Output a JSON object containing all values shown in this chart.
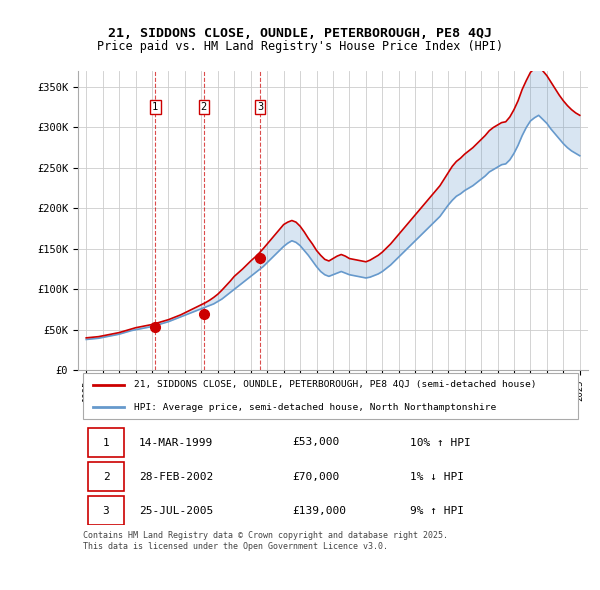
{
  "title_line1": "21, SIDDONS CLOSE, OUNDLE, PETERBOROUGH, PE8 4QJ",
  "title_line2": "Price paid vs. HM Land Registry's House Price Index (HPI)",
  "legend_label_red": "21, SIDDONS CLOSE, OUNDLE, PETERBOROUGH, PE8 4QJ (semi-detached house)",
  "legend_label_blue": "HPI: Average price, semi-detached house, North Northamptonshire",
  "footer": "Contains HM Land Registry data © Crown copyright and database right 2025.\nThis data is licensed under the Open Government Licence v3.0.",
  "transactions": [
    {
      "num": 1,
      "date": "14-MAR-1999",
      "price": "£53,000",
      "hpi": "10% ↑ HPI",
      "year": 1999.2
    },
    {
      "num": 2,
      "date": "28-FEB-2002",
      "price": "£70,000",
      "hpi": "1% ↓ HPI",
      "year": 2002.15
    },
    {
      "num": 3,
      "date": "25-JUL-2005",
      "price": "£139,000",
      "hpi": "9% ↑ HPI",
      "year": 2005.56
    }
  ],
  "transaction_values": [
    53000,
    70000,
    139000
  ],
  "transaction_years": [
    1999.2,
    2002.15,
    2005.56
  ],
  "red_color": "#cc0000",
  "blue_color": "#6699cc",
  "background_color": "#ffffff",
  "grid_color": "#cccccc",
  "ylim": [
    0,
    370000
  ],
  "xlim_start": 1994.5,
  "xlim_end": 2025.5,
  "hpi_years": [
    1995,
    1995.25,
    1995.5,
    1995.75,
    1996,
    1996.25,
    1996.5,
    1996.75,
    1997,
    1997.25,
    1997.5,
    1997.75,
    1998,
    1998.25,
    1998.5,
    1998.75,
    1999,
    1999.25,
    1999.5,
    1999.75,
    2000,
    2000.25,
    2000.5,
    2000.75,
    2001,
    2001.25,
    2001.5,
    2001.75,
    2002,
    2002.25,
    2002.5,
    2002.75,
    2003,
    2003.25,
    2003.5,
    2003.75,
    2004,
    2004.25,
    2004.5,
    2004.75,
    2005,
    2005.25,
    2005.5,
    2005.75,
    2006,
    2006.25,
    2006.5,
    2006.75,
    2007,
    2007.25,
    2007.5,
    2007.75,
    2008,
    2008.25,
    2008.5,
    2008.75,
    2009,
    2009.25,
    2009.5,
    2009.75,
    2010,
    2010.25,
    2010.5,
    2010.75,
    2011,
    2011.25,
    2011.5,
    2011.75,
    2012,
    2012.25,
    2012.5,
    2012.75,
    2013,
    2013.25,
    2013.5,
    2013.75,
    2014,
    2014.25,
    2014.5,
    2014.75,
    2015,
    2015.25,
    2015.5,
    2015.75,
    2016,
    2016.25,
    2016.5,
    2016.75,
    2017,
    2017.25,
    2017.5,
    2017.75,
    2018,
    2018.25,
    2018.5,
    2018.75,
    2019,
    2019.25,
    2019.5,
    2019.75,
    2020,
    2020.25,
    2020.5,
    2020.75,
    2021,
    2021.25,
    2021.5,
    2021.75,
    2022,
    2022.25,
    2022.5,
    2022.75,
    2023,
    2023.25,
    2023.5,
    2023.75,
    2024,
    2024.25,
    2024.5,
    2024.75,
    2025
  ],
  "hpi_values": [
    38000,
    38500,
    39000,
    39500,
    40500,
    41500,
    42500,
    43500,
    44500,
    46000,
    47500,
    49000,
    50000,
    51000,
    52000,
    53000,
    54000,
    55500,
    57000,
    58500,
    60000,
    62000,
    64000,
    66000,
    68000,
    70000,
    72000,
    74000,
    76000,
    78000,
    80000,
    82000,
    85000,
    88000,
    92000,
    96000,
    100000,
    104000,
    108000,
    112000,
    116000,
    120000,
    124000,
    128000,
    133000,
    138000,
    143000,
    148000,
    153000,
    157000,
    160000,
    158000,
    154000,
    148000,
    142000,
    135000,
    128000,
    122000,
    118000,
    116000,
    118000,
    120000,
    122000,
    120000,
    118000,
    117000,
    116000,
    115000,
    114000,
    115000,
    117000,
    119000,
    122000,
    126000,
    130000,
    135000,
    140000,
    145000,
    150000,
    155000,
    160000,
    165000,
    170000,
    175000,
    180000,
    185000,
    190000,
    197000,
    204000,
    210000,
    215000,
    218000,
    222000,
    225000,
    228000,
    232000,
    236000,
    240000,
    245000,
    248000,
    251000,
    254000,
    255000,
    260000,
    268000,
    278000,
    290000,
    300000,
    308000,
    312000,
    315000,
    310000,
    305000,
    298000,
    292000,
    286000,
    280000,
    275000,
    271000,
    268000,
    265000
  ],
  "red_years": [
    1995,
    1995.25,
    1995.5,
    1995.75,
    1996,
    1996.25,
    1996.5,
    1996.75,
    1997,
    1997.25,
    1997.5,
    1997.75,
    1998,
    1998.25,
    1998.5,
    1998.75,
    1999,
    1999.25,
    1999.5,
    1999.75,
    2000,
    2000.25,
    2000.5,
    2000.75,
    2001,
    2001.25,
    2001.5,
    2001.75,
    2002,
    2002.25,
    2002.5,
    2002.75,
    2003,
    2003.25,
    2003.5,
    2003.75,
    2004,
    2004.25,
    2004.5,
    2004.75,
    2005,
    2005.25,
    2005.5,
    2005.75,
    2006,
    2006.25,
    2006.5,
    2006.75,
    2007,
    2007.25,
    2007.5,
    2007.75,
    2008,
    2008.25,
    2008.5,
    2008.75,
    2009,
    2009.25,
    2009.5,
    2009.75,
    2010,
    2010.25,
    2010.5,
    2010.75,
    2011,
    2011.25,
    2011.5,
    2011.75,
    2012,
    2012.25,
    2012.5,
    2012.75,
    2013,
    2013.25,
    2013.5,
    2013.75,
    2014,
    2014.25,
    2014.5,
    2014.75,
    2015,
    2015.25,
    2015.5,
    2015.75,
    2016,
    2016.25,
    2016.5,
    2016.75,
    2017,
    2017.25,
    2017.5,
    2017.75,
    2018,
    2018.25,
    2018.5,
    2018.75,
    2019,
    2019.25,
    2019.5,
    2019.75,
    2020,
    2020.25,
    2020.5,
    2020.75,
    2021,
    2021.25,
    2021.5,
    2021.75,
    2022,
    2022.25,
    2022.5,
    2022.75,
    2023,
    2023.25,
    2023.5,
    2023.75,
    2024,
    2024.25,
    2024.5,
    2024.75,
    2025
  ],
  "red_values": [
    40000,
    40500,
    41000,
    41500,
    42500,
    43500,
    44500,
    45500,
    46500,
    48000,
    49500,
    51000,
    52500,
    53500,
    54500,
    55500,
    56500,
    58000,
    59500,
    61000,
    62500,
    64500,
    66500,
    68500,
    71000,
    73500,
    76000,
    78500,
    81000,
    83500,
    86500,
    90000,
    94000,
    99000,
    104500,
    110000,
    116000,
    120500,
    125000,
    130000,
    135000,
    139500,
    144500,
    150000,
    156000,
    162000,
    168000,
    174000,
    180000,
    183000,
    185000,
    183000,
    178000,
    171000,
    163000,
    156000,
    148000,
    142000,
    137000,
    135000,
    138000,
    141000,
    143000,
    141000,
    138000,
    137000,
    136000,
    135000,
    134000,
    136000,
    139000,
    142000,
    146000,
    151000,
    156000,
    162000,
    168000,
    174000,
    180000,
    186000,
    192000,
    198000,
    204000,
    210000,
    216000,
    222000,
    228000,
    236000,
    244000,
    252000,
    258000,
    262000,
    267000,
    271000,
    275000,
    280000,
    285000,
    290000,
    296000,
    300000,
    303000,
    306000,
    307000,
    313000,
    322000,
    333000,
    347000,
    358000,
    368000,
    373000,
    376000,
    370000,
    364000,
    356000,
    348000,
    340000,
    333000,
    327000,
    322000,
    318000,
    315000
  ]
}
